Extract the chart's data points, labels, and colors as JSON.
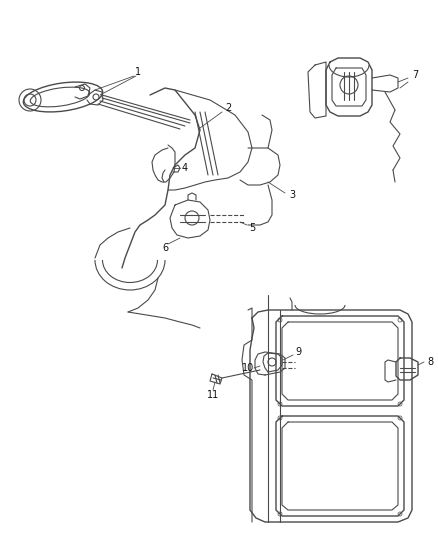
{
  "background_color": "#ffffff",
  "line_color": "#4a4a4a",
  "label_color": "#111111",
  "fig_width": 4.38,
  "fig_height": 5.33,
  "dpi": 100
}
